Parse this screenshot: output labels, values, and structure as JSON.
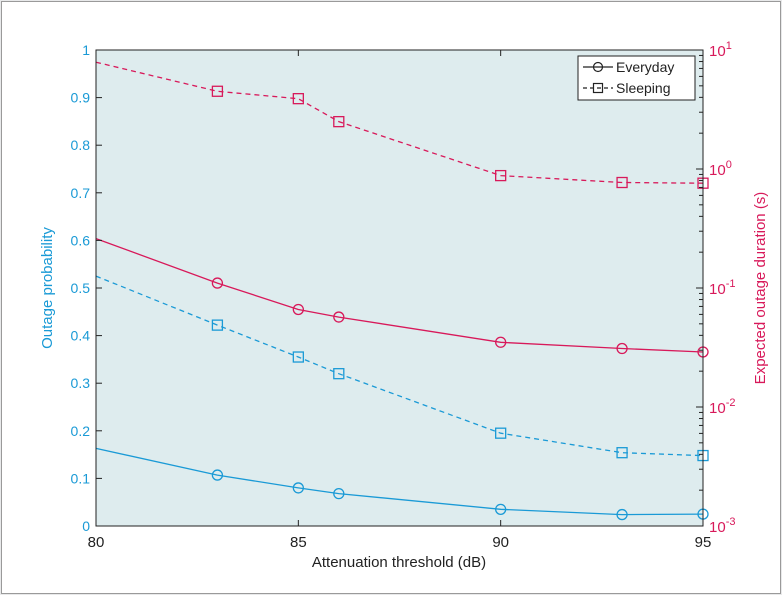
{
  "chart_data": {
    "type": "line",
    "title": "",
    "xlabel": "Attenuation threshold (dB)",
    "ylabel_left": "Outage probability",
    "ylabel_right": "Expected outage duration (s)",
    "x_ticks": [
      "80",
      "85",
      "90",
      "95"
    ],
    "y_left_ticks": [
      "0",
      "0.1",
      "0.2",
      "0.3",
      "0.4",
      "0.5",
      "0.6",
      "0.7",
      "0.8",
      "0.9",
      "1"
    ],
    "y_right_ticks": [
      {
        "base": "10",
        "exp": "-3"
      },
      {
        "base": "10",
        "exp": "-2"
      },
      {
        "base": "10",
        "exp": "-1"
      },
      {
        "base": "10",
        "exp": "0"
      },
      {
        "base": "10",
        "exp": "1"
      }
    ],
    "xlim": [
      80,
      95
    ],
    "ylim_left": [
      0,
      1
    ],
    "ylim_right": [
      0.001,
      10
    ],
    "right_axis_scale": "log",
    "grid": false,
    "legend_position": "top-right",
    "legend": [
      {
        "label": "Everyday",
        "linestyle": "solid",
        "marker": "circle"
      },
      {
        "label": "Sleeping",
        "linestyle": "dashed",
        "marker": "square"
      }
    ],
    "colors": {
      "left_axis": "#1a9ad6",
      "right_axis": "#d8195a",
      "plot_background": "#deecee"
    },
    "series": [
      {
        "axis": "left",
        "scenario": "Everyday",
        "linestyle": "solid",
        "marker": "circle",
        "x": [
          80,
          83,
          85,
          86,
          90,
          93,
          95
        ],
        "y": [
          0.163,
          0.107,
          0.08,
          0.068,
          0.035,
          0.024,
          0.025
        ],
        "marker_x": [
          83,
          85,
          86,
          90,
          93,
          95
        ]
      },
      {
        "axis": "left",
        "scenario": "Sleeping",
        "linestyle": "dashed",
        "marker": "square",
        "x": [
          80,
          83,
          85,
          86,
          90,
          93,
          95
        ],
        "y": [
          0.525,
          0.422,
          0.355,
          0.32,
          0.195,
          0.154,
          0.148
        ],
        "marker_x": [
          83,
          85,
          86,
          90,
          93,
          95
        ]
      },
      {
        "axis": "right",
        "scenario": "Everyday",
        "linestyle": "solid",
        "marker": "circle",
        "x": [
          80,
          83,
          85,
          86,
          90,
          93,
          95
        ],
        "y": [
          0.26,
          0.11,
          0.066,
          0.057,
          0.035,
          0.031,
          0.029
        ],
        "marker_x": [
          83,
          85,
          86,
          90,
          93,
          95
        ]
      },
      {
        "axis": "right",
        "scenario": "Sleeping",
        "linestyle": "dashed",
        "marker": "square",
        "x": [
          80,
          83,
          85,
          86,
          90,
          93,
          95
        ],
        "y": [
          7.9,
          4.5,
          3.9,
          2.5,
          0.88,
          0.77,
          0.76
        ],
        "marker_x": [
          83,
          85,
          86,
          90,
          93,
          95
        ]
      }
    ]
  }
}
